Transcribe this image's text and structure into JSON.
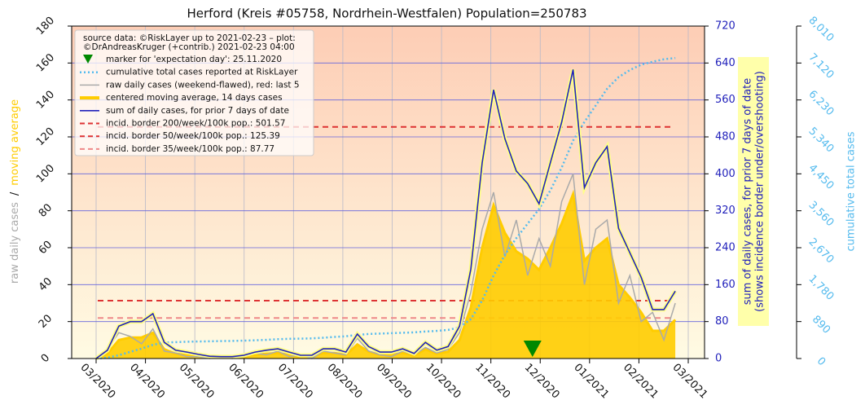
{
  "chart_data": {
    "type": "line",
    "title": "Herford (Kreis #05758, Nordrhein-Westfalen) Population=250783",
    "y_label_parts": [
      "raw daily cases",
      "/",
      "moving average"
    ],
    "y2_label": [
      "sum of daily cases, for prior 7 days of date",
      "(shows incidence border under/overshooting)"
    ],
    "y3_label": "cumulative total cases",
    "legend_notes": [
      "source data: ©RiskLayer up to 2021-02-23 – plot:",
      "©DrAndreasKruger (+contrib.) 2021-02-23 04:00"
    ],
    "marker_label": "marker for 'expectation day': 25.11.2020",
    "marker_color": "#008800",
    "xticks": [
      "03/2020",
      "04/2020",
      "05/2020",
      "06/2020",
      "07/2020",
      "08/2020",
      "09/2020",
      "10/2020",
      "11/2020",
      "12/2020",
      "01/2021",
      "02/2021",
      "03/2021"
    ],
    "ylim": [
      0,
      180
    ],
    "yticks": [
      0,
      20,
      40,
      60,
      80,
      100,
      120,
      140,
      160,
      180
    ],
    "y2lim": [
      0,
      720
    ],
    "y2ticks": [
      0,
      80,
      160,
      240,
      320,
      400,
      480,
      560,
      640,
      720
    ],
    "y3lim": [
      0,
      8010
    ],
    "y3ticks": [
      0,
      890,
      {
        "value": 1780,
        "label": "1,780"
      },
      {
        "value": 2670,
        "label": "2,670"
      },
      {
        "value": 3560,
        "label": "3,560"
      },
      {
        "value": 4450,
        "label": "4,450"
      },
      {
        "value": 5340,
        "label": "5,340"
      },
      {
        "value": 6230,
        "label": "6,230"
      },
      {
        "value": 7120,
        "label": "7,120"
      },
      {
        "value": 8010,
        "label": "8,010"
      }
    ],
    "grid": true,
    "series": [
      {
        "name": "cumulative total cases reported at RiskLayer",
        "color": "#55bbee",
        "axis": "y3",
        "style": "dotted",
        "values": [
          0,
          20,
          80,
          160,
          240,
          330,
          380,
          395,
          405,
          410,
          415,
          420,
          425,
          430,
          440,
          450,
          465,
          475,
          480,
          485,
          500,
          520,
          535,
          570,
          590,
          600,
          610,
          620,
          630,
          650,
          665,
          690,
          750,
          950,
          1400,
          2000,
          2500,
          2900,
          3250,
          3600,
          4050,
          4600,
          5250,
          5700,
          6100,
          6500,
          6780,
          6950,
          7080,
          7150,
          7210,
          7240
        ]
      },
      {
        "name": "raw daily cases (weekend-flawed), red: last 5",
        "color": "#aaaaaa",
        "axis": "y",
        "style": "raw",
        "values": [
          0,
          5,
          14,
          12,
          8,
          16,
          4,
          3,
          1,
          1,
          0,
          1,
          0,
          2,
          3,
          2,
          4,
          1,
          2,
          0,
          4,
          3,
          2,
          11,
          4,
          2,
          1,
          4,
          2,
          6,
          3,
          5,
          14,
          36,
          70,
          90,
          55,
          75,
          45,
          65,
          50,
          85,
          100,
          40,
          70,
          75,
          30,
          45,
          20,
          25,
          10,
          30
        ]
      },
      {
        "name": "centered moving average, 14 days cases",
        "color": "#ffcc00",
        "axis": "y",
        "style": "area",
        "values": [
          0,
          2.6,
          10,
          11.4,
          11.4,
          13.9,
          5,
          2.6,
          2,
          1.3,
          0.7,
          0.6,
          0.6,
          1,
          2,
          2.6,
          3,
          2,
          1,
          1,
          3,
          3,
          2,
          7.6,
          3.7,
          2,
          2,
          3,
          1.6,
          5,
          2.6,
          3.7,
          10,
          27.7,
          60,
          83,
          68,
          58,
          54,
          48,
          60,
          73,
          89,
          53,
          60,
          65,
          40,
          33,
          25,
          15,
          15,
          21
        ]
      },
      {
        "name": "sum of daily cases, for prior 7 days of date",
        "color": "#2222bb",
        "axis": "y2",
        "style": "solid",
        "values": [
          0,
          18,
          70,
          80,
          80,
          97,
          35,
          18,
          14,
          9,
          5,
          4,
          4,
          7,
          14,
          18,
          21,
          14,
          7,
          7,
          21,
          21,
          14,
          53,
          26,
          14,
          14,
          21,
          11,
          35,
          18,
          26,
          70,
          194,
          424,
          582,
          476,
          406,
          379,
          335,
          424,
          512,
          626,
          370,
          424,
          459,
          282,
          229,
          176,
          106,
          106,
          146
        ]
      }
    ],
    "reference_lines": [
      {
        "label": "incid. border 200/week/100k pop.: 501.57",
        "value": 501.57,
        "color": "#dd3333"
      },
      {
        "label": "incid. border  50/week/100k pop.: 125.39",
        "value": 125.39,
        "color": "#dd3333"
      },
      {
        "label": "incid. border  35/week/100k pop.: 87.77",
        "value": 87.77,
        "color": "#ee8888"
      }
    ]
  }
}
